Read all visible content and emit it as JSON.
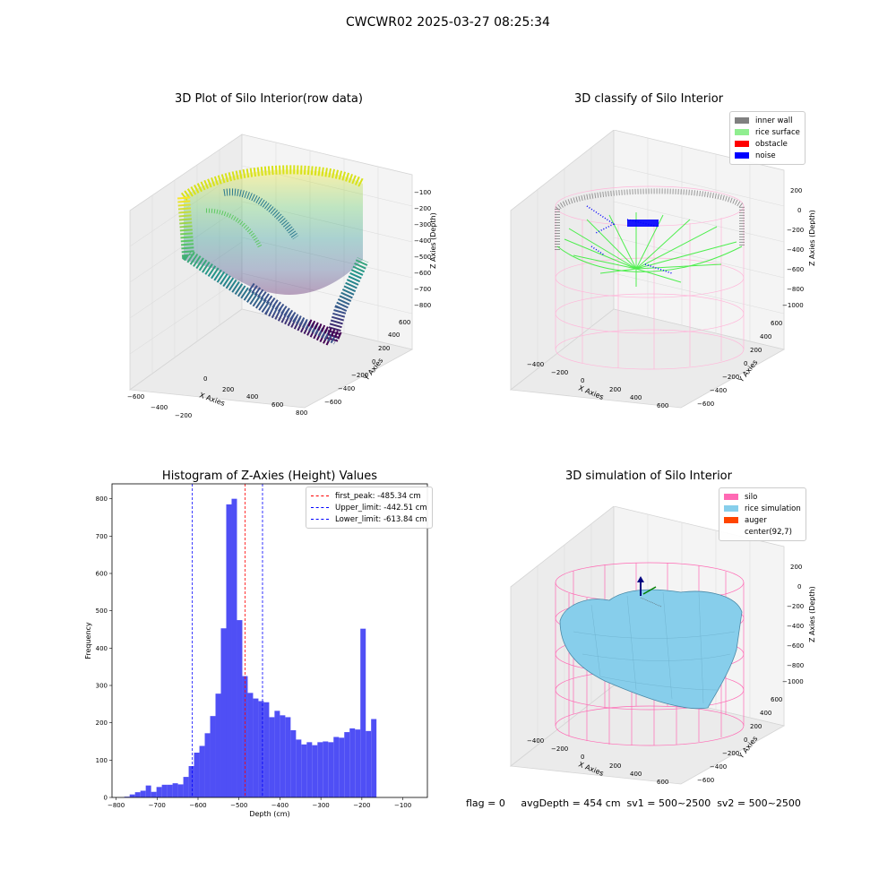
{
  "suptitle": "CWCWR02 2025-03-27 08:25:34",
  "colors": {
    "hist_bar": "#4f4ff5",
    "first_peak_line": "#ff0000",
    "limit_line": "#0000ff",
    "inner_wall": "#808080",
    "rice_surface": "#90ee90",
    "obstacle": "#ff0000",
    "noise": "#0000ff",
    "silo": "#ff69b4",
    "rice_simulation": "#87ceeb",
    "auger": "#ff4500"
  },
  "footer": {
    "text": "flag = 0     avgDepth = 454 cm  sv1 = 500~2500  sv2 = 500~2500"
  },
  "chart_data": [
    {
      "type": "scatter",
      "subtype": "3d",
      "title": "3D Plot of Silo Interior(row data)",
      "xlabel": "X Axies",
      "ylabel": "Y Axies",
      "zlabel": "Z Axies (Depth)",
      "x_ticks": [
        "−600",
        "−400",
        "−200",
        "0",
        "200",
        "400",
        "600",
        "800"
      ],
      "y_ticks": [
        "−600",
        "−400",
        "−200",
        "0",
        "200",
        "400",
        "600"
      ],
      "z_ticks": [
        "−100",
        "−200",
        "−300",
        "−400",
        "−500",
        "−600",
        "−700",
        "−800"
      ],
      "xlim": [
        -600,
        800
      ],
      "ylim": [
        -600,
        600
      ],
      "zlim": [
        -850,
        -50
      ],
      "colormap": "viridis"
    },
    {
      "type": "scatter",
      "subtype": "3d",
      "title": "3D classify of Silo Interior",
      "xlabel": "X Axies",
      "ylabel": "Y Axies",
      "zlabel": "Z Axies (Depth)",
      "x_ticks": [
        "−400",
        "−200",
        "0",
        "200",
        "400",
        "600"
      ],
      "y_ticks": [
        "−600",
        "−400",
        "−200",
        "0",
        "200",
        "400",
        "600"
      ],
      "z_ticks": [
        "200",
        "0",
        "−200",
        "−400",
        "−600",
        "−800",
        "−1000"
      ],
      "legend": [
        "inner wall",
        "rice surface",
        "obstacle",
        "noise"
      ],
      "legend_position": "upper-right"
    },
    {
      "type": "bar",
      "subtype": "histogram",
      "title": "Histogram of Z-Axies (Height) Values",
      "xlabel": "Depth (cm)",
      "ylabel": "Frequency",
      "xlim": [
        -810,
        -40
      ],
      "ylim": [
        0,
        840
      ],
      "x_ticks": [
        -800,
        -700,
        -600,
        -500,
        -400,
        -300,
        -200,
        -100
      ],
      "y_ticks": [
        0,
        100,
        200,
        300,
        400,
        500,
        600,
        700,
        800
      ],
      "x_tick_labels": [
        "−800",
        "−700",
        "−600",
        "−500",
        "−400",
        "−300",
        "−200",
        "−100"
      ],
      "y_tick_labels": [
        "0",
        "100",
        "200",
        "300",
        "400",
        "500",
        "600",
        "700",
        "800"
      ],
      "bin_start": -780,
      "bin_width": 13.1,
      "values": [
        2,
        8,
        14,
        18,
        32,
        15,
        28,
        34,
        34,
        38,
        35,
        55,
        84,
        120,
        138,
        172,
        218,
        278,
        453,
        785,
        800,
        475,
        325,
        280,
        265,
        258,
        255,
        215,
        232,
        220,
        215,
        180,
        155,
        142,
        148,
        140,
        148,
        150,
        148,
        162,
        160,
        175,
        185,
        182,
        452,
        178,
        210
      ],
      "vlines": [
        {
          "label": "first_peak: -485.34 cm",
          "x": -485.34,
          "color": "#ff0000"
        },
        {
          "label": "Upper_limit: -442.51 cm",
          "x": -442.51,
          "color": "#0000ff"
        },
        {
          "label": "Lower_limit: -613.84 cm",
          "x": -613.84,
          "color": "#0000ff"
        }
      ],
      "legend_position": "upper-right"
    },
    {
      "type": "surface",
      "subtype": "3d",
      "title": "3D simulation of Silo Interior",
      "xlabel": "X Axies",
      "ylabel": "Y Axies",
      "zlabel": "Z Axies (Depth)",
      "x_ticks": [
        "−400",
        "−200",
        "0",
        "200",
        "400",
        "600"
      ],
      "y_ticks": [
        "−600",
        "−400",
        "−200",
        "0",
        "200",
        "400",
        "600"
      ],
      "z_ticks": [
        "200",
        "0",
        "−200",
        "−400",
        "−600",
        "−800",
        "−1000"
      ],
      "legend": [
        "silo",
        "rice simulation",
        "auger",
        "center(92,7)"
      ],
      "legend_position": "upper-right"
    }
  ]
}
